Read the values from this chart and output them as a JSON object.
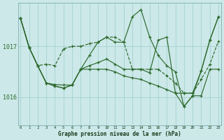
{
  "title": "Graphe pression niveau de la mer (hPa)",
  "bg_color": "#cce8e8",
  "line_color": "#2d6a2d",
  "grid_color": "#9ecece",
  "ytick_color": "#2d6a2d",
  "xlabel_color": "#1a3a1a",
  "yticks": [
    1016,
    1017
  ],
  "xlim": [
    -0.3,
    23.3
  ],
  "ylim": [
    1015.45,
    1017.85
  ],
  "series": [
    {
      "y": [
        1017.55,
        1016.98,
        1016.62,
        1016.28,
        1016.25,
        1016.24,
        1016.24,
        1016.55,
        1016.55,
        1016.55,
        1016.55,
        1016.5,
        1016.42,
        1016.38,
        1016.35,
        1016.28,
        1016.22,
        1016.15,
        1016.08,
        1015.82,
        1016.03,
        1016.03,
        1016.55,
        1016.55
      ],
      "linestyle": "-",
      "dotted": false
    },
    {
      "y": [
        1017.55,
        1016.98,
        1016.62,
        1016.65,
        1016.62,
        1016.95,
        1017.0,
        1017.0,
        1017.05,
        1017.08,
        1017.18,
        1017.18,
        1017.08,
        1016.55,
        1016.55,
        1016.55,
        1016.55,
        1016.42,
        1016.28,
        1016.08,
        1016.08,
        1016.35,
        1016.65,
        1017.1
      ],
      "linestyle": "--",
      "dotted": true
    },
    {
      "y": [
        1017.55,
        1016.98,
        1016.62,
        1016.28,
        1016.22,
        1016.18,
        1016.24,
        1016.55,
        1016.82,
        1017.08,
        1017.18,
        1017.08,
        1017.08,
        1017.58,
        1017.72,
        1017.18,
        1016.82,
        1016.62,
        1016.5,
        1015.82,
        1016.03,
        1016.52,
        1017.12,
        1017.58
      ],
      "linestyle": "-",
      "dotted": false
    },
    {
      "y": [
        1017.55,
        1016.98,
        1016.62,
        1016.28,
        1016.22,
        1016.18,
        1016.24,
        1016.55,
        1016.62,
        1016.68,
        1016.75,
        1016.65,
        1016.55,
        1016.55,
        1016.55,
        1016.48,
        1017.12,
        1017.18,
        1016.08,
        1016.08,
        1016.08,
        1016.52,
        1017.12,
        1017.58
      ],
      "linestyle": "-",
      "dotted": false
    }
  ]
}
